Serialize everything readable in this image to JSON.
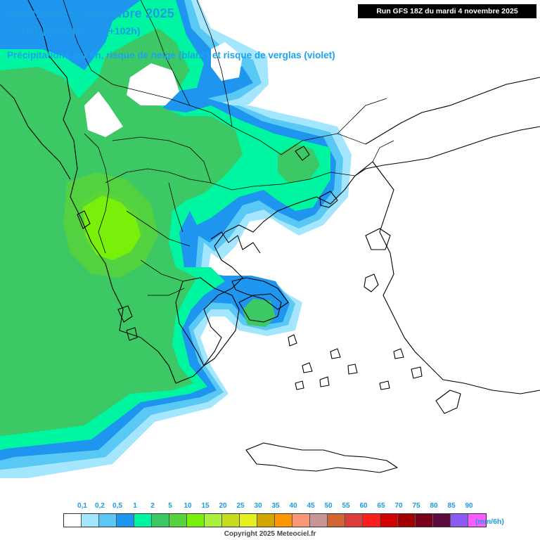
{
  "header": {
    "date": "dimanche 9 novembre 2025",
    "local_time": "1:00 locale",
    "lead_time": "(+102h)",
    "subtitle": "Précipitations sur 6h, risque de neige (blanc) et risque de verglas (violet)",
    "run_label": "Run GFS 18Z du mardi 4 novembre 2025"
  },
  "legend": {
    "unit": "(mm/6h)",
    "labels": [
      "0,1",
      "0,2",
      "0,5",
      "1",
      "2",
      "5",
      "10",
      "15",
      "20",
      "25",
      "30",
      "35",
      "40",
      "45",
      "50",
      "55",
      "60",
      "65",
      "70",
      "75",
      "80",
      "85",
      "90"
    ],
    "colors": [
      "#ffffff",
      "#a5e6ff",
      "#5ac8f5",
      "#1e96f0",
      "#00f5a0",
      "#3cc864",
      "#55d23c",
      "#78f00a",
      "#aaf03c",
      "#c8dc1e",
      "#e6f01e",
      "#d2a500",
      "#ff9600",
      "#fa9678",
      "#c89696",
      "#d26432",
      "#dc3c3c",
      "#ff1e1e",
      "#d20000",
      "#a00000",
      "#78001e",
      "#5a0a3c",
      "#8c5af0",
      "#ff5aff"
    ]
  },
  "map": {
    "colors": {
      "land_outline": "#000000",
      "light_blue": "#a5e6ff",
      "mid_blue": "#5ac8f5",
      "blue": "#1e96f0",
      "aqua": "#00f5a0",
      "green": "#3cc864",
      "green_yellow": "#78f00a",
      "snow_white": "#ffffff"
    }
  },
  "footer": {
    "copyright": "Copyright 2025 Meteociel.fr"
  }
}
